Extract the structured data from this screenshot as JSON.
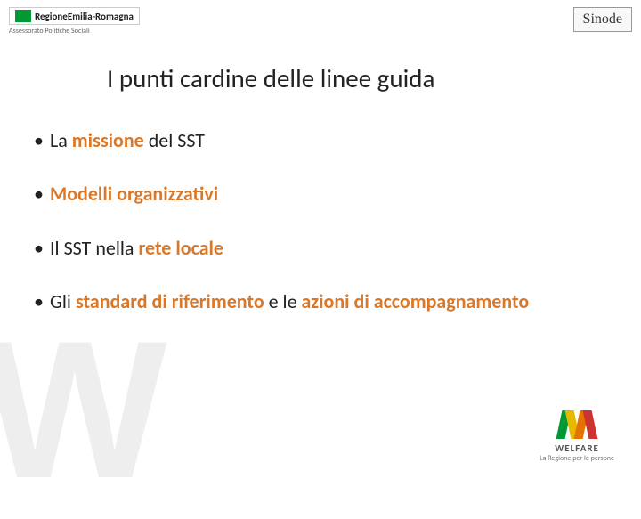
{
  "header": {
    "logo_left_main": "RegioneEmilia-Romagna",
    "logo_left_sub": "Assessorato Politiche Sociali",
    "logo_right": "Sinode"
  },
  "title": "I punti cardine delle linee guida",
  "bullets": {
    "b1_pre": "La ",
    "b1_orange": "missione",
    "b1_post": " del SST",
    "b2": "Modelli organizzativi",
    "b3_pre": "Il SST nella ",
    "b3_orange": "rete locale",
    "b4_pre": "Gli ",
    "b4_orange1": "standard di riferimento",
    "b4_mid": " e le ",
    "b4_orange2": "azioni di accompagnamento"
  },
  "footer": {
    "welfare_label": "WELFARE",
    "welfare_sub": "La Regione per le persone"
  },
  "colors": {
    "orange": "#d97828",
    "green": "#009933",
    "text": "#222222",
    "bg_w": "#eeeeee"
  }
}
